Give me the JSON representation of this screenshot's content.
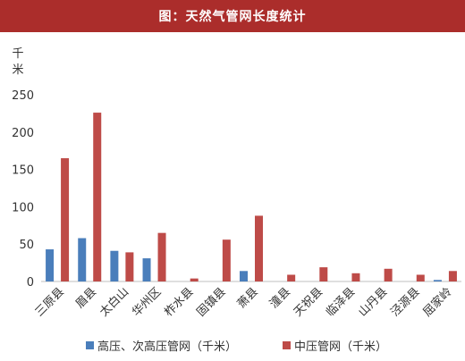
{
  "chart_data": {
    "type": "bar",
    "title": "图：天然气管网长度统计",
    "ylabel": "千米",
    "ylim": [
      0,
      250
    ],
    "yticks": [
      0,
      50,
      100,
      150,
      200,
      250
    ],
    "grid": false,
    "legend_position": "bottom",
    "categories": [
      "三原县",
      "眉县",
      "太白山",
      "华州区",
      "柞水县",
      "固镇县",
      "萧县",
      "潼县",
      "天祝县",
      "临泽县",
      "山丹县",
      "泾源县",
      "屈家岭"
    ],
    "series": [
      {
        "name": "高压、次高压管网（千米）",
        "color": "#4a7ebb",
        "values": [
          43,
          58,
          41,
          31,
          0,
          0,
          14,
          0,
          0,
          0,
          0,
          0,
          2
        ]
      },
      {
        "name": "中压管网（千米）",
        "color": "#be4b48",
        "values": [
          165,
          226,
          39,
          65,
          4,
          56,
          88,
          9,
          19,
          11,
          17,
          9,
          14
        ]
      }
    ]
  }
}
